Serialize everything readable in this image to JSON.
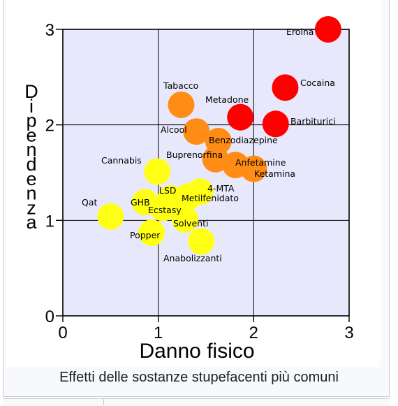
{
  "caption": "Effetti delle sostanze stupefacenti più comuni",
  "chart_data": {
    "type": "scatter",
    "title": "",
    "xlabel": "Danno fisico",
    "ylabel": "Dipendenza",
    "xlim": [
      0,
      3
    ],
    "ylim": [
      0,
      3
    ],
    "xticks": [
      "0",
      "1",
      "2",
      "3"
    ],
    "yticks": [
      "0",
      "1",
      "2",
      "3"
    ],
    "grid": true,
    "colors": {
      "plot_bg": "#e8e8fc",
      "high": "#ff0000",
      "medium": "#ff8c14",
      "low": "#ffff14"
    },
    "points": [
      {
        "label": "Eroina",
        "x": 2.78,
        "y": 3.0,
        "level": "high"
      },
      {
        "label": "Cocaina",
        "x": 2.33,
        "y": 2.39,
        "level": "high"
      },
      {
        "label": "Barbiturici",
        "x": 2.23,
        "y": 2.01,
        "level": "high"
      },
      {
        "label": "Metadone",
        "x": 1.86,
        "y": 2.08,
        "level": "high"
      },
      {
        "label": "Tabacco",
        "x": 1.24,
        "y": 2.21,
        "level": "medium"
      },
      {
        "label": "Alcool",
        "x": 1.4,
        "y": 1.93,
        "level": "medium"
      },
      {
        "label": "Benzodiazepine",
        "x": 1.63,
        "y": 1.83,
        "level": "medium"
      },
      {
        "label": "Buprenorfina",
        "x": 1.6,
        "y": 1.64,
        "level": "medium"
      },
      {
        "label": "Anfetamine",
        "x": 1.81,
        "y": 1.58,
        "level": "medium"
      },
      {
        "label": "Ketamina",
        "x": 2.0,
        "y": 1.54,
        "level": "medium"
      },
      {
        "label": "Cannabis",
        "x": 0.99,
        "y": 1.51,
        "level": "low"
      },
      {
        "label": "4-MTA",
        "x": 1.44,
        "y": 1.3,
        "level": "low"
      },
      {
        "label": "LSD",
        "x": 1.13,
        "y": 1.23,
        "level": "low"
      },
      {
        "label": "Metilfenidato",
        "x": 1.32,
        "y": 1.25,
        "level": "low"
      },
      {
        "label": "GHB",
        "x": 0.86,
        "y": 1.19,
        "level": "low"
      },
      {
        "label": "Ecstasy",
        "x": 1.05,
        "y": 1.13,
        "level": "low"
      },
      {
        "label": "Qat",
        "x": 0.5,
        "y": 1.04,
        "level": "low"
      },
      {
        "label": "Solventi",
        "x": 1.28,
        "y": 1.01,
        "level": "low"
      },
      {
        "label": "Popper",
        "x": 0.93,
        "y": 0.87,
        "level": "low"
      },
      {
        "label": "Anabolizzanti",
        "x": 1.45,
        "y": 0.78,
        "level": "low"
      }
    ]
  }
}
